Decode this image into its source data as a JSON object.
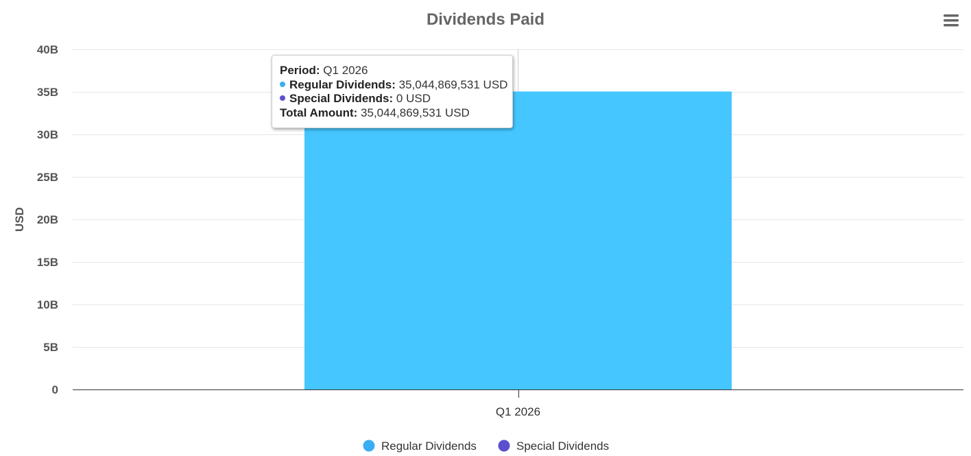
{
  "menu_icon": "hamburger-menu-icon",
  "chart_data": {
    "type": "bar",
    "title": "Dividends Paid",
    "xlabel": "",
    "ylabel": "USD",
    "categories": [
      "Q1 2026"
    ],
    "series": [
      {
        "name": "Regular Dividends",
        "color": "#45c6ff",
        "legend_color": "#3aaef5",
        "values": [
          35044869531
        ]
      },
      {
        "name": "Special Dividends",
        "color": "#5b4fcf",
        "legend_color": "#5b4fcf",
        "values": [
          0
        ]
      }
    ],
    "ylim": [
      0,
      40000000000
    ],
    "yticks": [
      0,
      5000000000,
      10000000000,
      15000000000,
      20000000000,
      25000000000,
      30000000000,
      35000000000,
      40000000000
    ],
    "ytick_labels": [
      "0",
      "5B",
      "10B",
      "15B",
      "20B",
      "25B",
      "30B",
      "35B",
      "40B"
    ],
    "grid": true,
    "legend": "bottom-center",
    "stacked": true
  },
  "tooltip": {
    "period_label": "Period:",
    "period_value": "Q1 2026",
    "regular_label": "Regular Dividends:",
    "regular_value": "35,044,869,531 USD",
    "special_label": "Special Dividends:",
    "special_value": "0 USD",
    "total_label": "Total Amount:",
    "total_value": "35,044,869,531 USD"
  }
}
